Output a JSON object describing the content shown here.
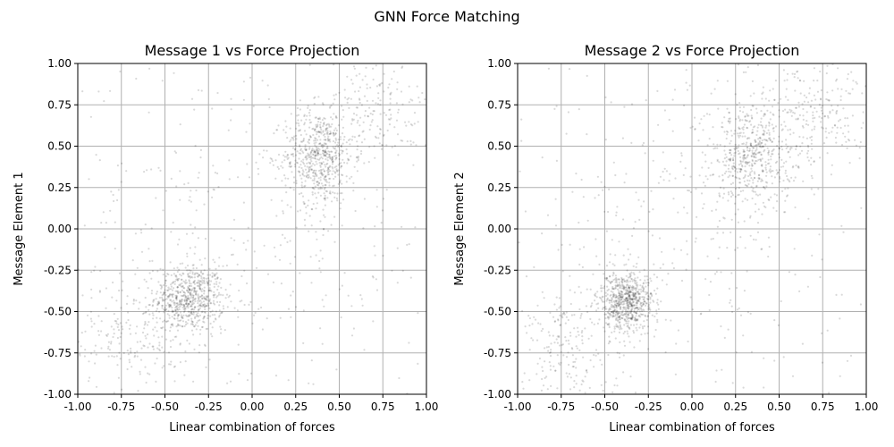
{
  "figure": {
    "suptitle": "GNN Force Matching"
  },
  "chart_data": [
    {
      "type": "scatter",
      "title": "Message 1 vs Force Projection",
      "xlabel": "Linear combination of forces",
      "ylabel": "Message Element 1",
      "xlim": [
        -1.0,
        1.0
      ],
      "ylim": [
        -1.0,
        1.0
      ],
      "xticks": [
        "-1.00",
        "-0.75",
        "-0.50",
        "-0.25",
        "0.00",
        "0.25",
        "0.50",
        "0.75",
        "1.00"
      ],
      "yticks": [
        "-1.00",
        "-0.75",
        "-0.50",
        "-0.25",
        "0.00",
        "0.25",
        "0.50",
        "0.75",
        "1.00"
      ],
      "grid": true,
      "marker_color": "#000000",
      "marker_alpha": 0.15,
      "clusters": [
        {
          "center": [
            -0.36,
            -0.42
          ],
          "spread": [
            0.1,
            0.1
          ],
          "count": 650
        },
        {
          "center": [
            0.38,
            0.44
          ],
          "spread": [
            0.1,
            0.14
          ],
          "count": 600
        },
        {
          "center": [
            0.0,
            0.0
          ],
          "spread": [
            0.6,
            0.6
          ],
          "count": 450
        },
        {
          "center": [
            -0.7,
            -0.65
          ],
          "spread": [
            0.18,
            0.16
          ],
          "count": 200
        },
        {
          "center": [
            0.7,
            0.7
          ],
          "spread": [
            0.18,
            0.16
          ],
          "count": 200
        }
      ]
    },
    {
      "type": "scatter",
      "title": "Message 2 vs Force Projection",
      "xlabel": "Linear combination of forces",
      "ylabel": "Message Element 2",
      "xlim": [
        -1.0,
        1.0
      ],
      "ylim": [
        -1.0,
        1.0
      ],
      "xticks": [
        "-1.00",
        "-0.75",
        "-0.50",
        "-0.25",
        "0.00",
        "0.25",
        "0.50",
        "0.75",
        "1.00"
      ],
      "yticks": [
        "-1.00",
        "-0.75",
        "-0.50",
        "-0.25",
        "0.00",
        "0.25",
        "0.50",
        "0.75",
        "1.00"
      ],
      "grid": true,
      "marker_color": "#000000",
      "marker_alpha": 0.15,
      "clusters": [
        {
          "center": [
            -0.38,
            -0.44
          ],
          "spread": [
            0.08,
            0.09
          ],
          "count": 700
        },
        {
          "center": [
            0.35,
            0.45
          ],
          "spread": [
            0.12,
            0.16
          ],
          "count": 550
        },
        {
          "center": [
            0.0,
            0.0
          ],
          "spread": [
            0.6,
            0.6
          ],
          "count": 450
        },
        {
          "center": [
            -0.7,
            -0.7
          ],
          "spread": [
            0.16,
            0.16
          ],
          "count": 200
        },
        {
          "center": [
            0.75,
            0.75
          ],
          "spread": [
            0.16,
            0.16
          ],
          "count": 200
        }
      ]
    }
  ]
}
